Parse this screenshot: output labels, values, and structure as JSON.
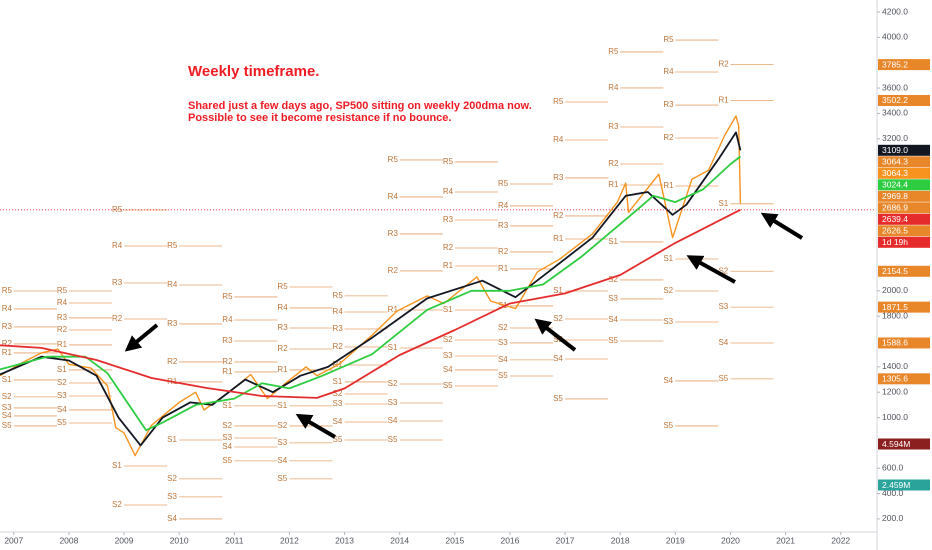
{
  "chart_data": {
    "type": "line",
    "annotations": [
      "Weekly timeframe.",
      "Shared just a few days ago, SP500 sitting on weekly 200dma now.",
      "Possible to see it become resistance if no bounce."
    ],
    "xlim": [
      2006.75,
      2022.64
    ],
    "xticks": [
      2007,
      2008,
      2009,
      2010,
      2011,
      2012,
      2013,
      2014,
      2015,
      2016,
      2017,
      2018,
      2019,
      2020,
      2021,
      2022
    ],
    "ylim": [
      97,
      4295
    ],
    "yticks": [
      {
        "value": 4200,
        "label": "4200.0"
      },
      {
        "value": 4000,
        "label": "4000.0"
      },
      {
        "value": 3600,
        "label": "3600.0"
      },
      {
        "value": 3400,
        "label": "3400.0"
      },
      {
        "value": 3200,
        "label": "3200.0"
      },
      {
        "value": 2000,
        "label": "2000.0"
      },
      {
        "value": 1800,
        "label": "1800.0"
      },
      {
        "value": 1400,
        "label": "1400.0"
      },
      {
        "value": 1200,
        "label": "1200.0"
      },
      {
        "value": 1000,
        "label": "1000.0"
      },
      {
        "value": 600,
        "label": "600.0"
      },
      {
        "value": 400,
        "label": "400.0"
      },
      {
        "value": 200,
        "label": "200.0"
      }
    ],
    "series": [
      {
        "color": "#f7931e",
        "x": [
          2006.75,
          2007.1,
          2007.5,
          2007.8,
          2008.0,
          2008.4,
          2008.7,
          2008.85,
          2009.0,
          2009.2,
          2009.5,
          2010.0,
          2010.3,
          2010.45,
          2010.9,
          2011.3,
          2011.6,
          2011.9,
          2012.3,
          2012.5,
          2012.9,
          2013.5,
          2013.95,
          2014.5,
          2014.8,
          2015.4,
          2015.65,
          2016.1,
          2016.5,
          2016.9,
          2017.5,
          2017.95,
          2018.1,
          2018.15,
          2018.7,
          2018.95,
          2019.3,
          2019.6,
          2019.9,
          2020.1,
          2020.15,
          2020.18
        ],
        "values": [
          1330,
          1420,
          1510,
          1540,
          1420,
          1390,
          1250,
          920,
          880,
          700,
          940,
          1120,
          1200,
          1060,
          1200,
          1340,
          1150,
          1260,
          1400,
          1330,
          1420,
          1650,
          1840,
          1960,
          1900,
          2110,
          1920,
          1860,
          2150,
          2250,
          2450,
          2700,
          2850,
          2620,
          2920,
          2420,
          2880,
          2950,
          3230,
          3380,
          3300,
          2690
        ]
      },
      {
        "color": "#131722",
        "x": [
          2006.75,
          2007.5,
          2008.0,
          2008.5,
          2008.9,
          2009.3,
          2009.7,
          2010.2,
          2010.6,
          2011.2,
          2011.7,
          2012.2,
          2012.7,
          2013.5,
          2014.5,
          2015.5,
          2016.1,
          2016.7,
          2017.5,
          2018.1,
          2018.5,
          2018.95,
          2019.2,
          2019.8,
          2020.1,
          2020.18
        ],
        "values": [
          1340,
          1480,
          1450,
          1330,
          1000,
          780,
          1000,
          1120,
          1100,
          1300,
          1200,
          1330,
          1400,
          1630,
          1940,
          2080,
          1950,
          2150,
          2420,
          2750,
          2780,
          2600,
          2680,
          3050,
          3250,
          3109
        ]
      },
      {
        "color": "#2ecc40",
        "x": [
          2006.75,
          2007.6,
          2008.3,
          2008.7,
          2009.4,
          2009.7,
          2010.3,
          2011.0,
          2011.5,
          2012.0,
          2012.6,
          2013.5,
          2014.5,
          2015.3,
          2016.0,
          2016.6,
          2017.3,
          2018.2,
          2018.6,
          2019.0,
          2019.5,
          2020.0,
          2020.18
        ],
        "values": [
          1380,
          1480,
          1480,
          1350,
          900,
          960,
          1100,
          1150,
          1270,
          1230,
          1330,
          1500,
          1850,
          2000,
          2000,
          2050,
          2270,
          2600,
          2750,
          2700,
          2800,
          3000,
          3060
        ]
      },
      {
        "color": "#e52b2b",
        "x": [
          2006.75,
          2007.5,
          2008.5,
          2009.5,
          2010.5,
          2011.5,
          2012.5,
          2013.0,
          2014.0,
          2015.0,
          2016.0,
          2017.0,
          2018.0,
          2019.0,
          2020.0,
          2020.18
        ],
        "values": [
          1570,
          1550,
          1454,
          1312,
          1233,
          1170,
          1155,
          1230,
          1494,
          1691,
          1900,
          1980,
          2125,
          2378,
          2600,
          2639.4
        ]
      }
    ],
    "pivots": [
      {
        "year": 2007,
        "labels": [
          "R5",
          "R4",
          "R3",
          "R2",
          "R1",
          "S1",
          "S2",
          "S3",
          "S4",
          "S5"
        ],
        "values": [
          1999,
          1857,
          1715,
          1581,
          1510,
          1297,
          1163,
          1076,
          1013,
          934
        ]
      },
      {
        "year": 2008,
        "labels": [
          "R5",
          "R4",
          "R3",
          "R2",
          "R1",
          "S1",
          "S2",
          "S3",
          "S4",
          "S5"
        ],
        "values": [
          1999,
          1904,
          1786,
          1691,
          1573,
          1376,
          1273,
          1170,
          1060,
          957
        ]
      },
      {
        "year": 2009,
        "labels": [
          "R5",
          "R4",
          "R3",
          "R2",
          "S1",
          "S2"
        ],
        "values": [
          2638,
          2354,
          2062,
          1778,
          618,
          310
        ]
      },
      {
        "year": 2010,
        "labels": [
          "R5",
          "R4",
          "R3",
          "R2",
          "R1",
          "S1",
          "S2",
          "S3",
          "S4"
        ],
        "values": [
          2354,
          2046,
          1739,
          1439,
          1281,
          823,
          516,
          374,
          200
        ]
      },
      {
        "year": 2011,
        "labels": [
          "R5",
          "R4",
          "R3",
          "R2",
          "R1",
          "S1",
          "S2",
          "S3",
          "S4",
          "S5"
        ],
        "values": [
          1952,
          1770,
          1604,
          1439,
          1360,
          1092,
          934,
          839,
          768,
          658
        ]
      },
      {
        "year": 2012,
        "labels": [
          "R5",
          "R4",
          "R3",
          "R2",
          "R1",
          "S1",
          "S2",
          "S3",
          "S4",
          "S5"
        ],
        "values": [
          2030,
          1865,
          1707,
          1541,
          1376,
          1092,
          934,
          800,
          658,
          516
        ]
      },
      {
        "year": 2013,
        "labels": [
          "R5",
          "R4",
          "R3",
          "R2",
          "R1",
          "S1",
          "S2",
          "S3",
          "S4",
          "S5"
        ],
        "values": [
          1960,
          1833,
          1699,
          1557,
          1415,
          1281,
          1186,
          1107,
          965,
          823
        ]
      },
      {
        "year": 2014,
        "labels": [
          "R5",
          "R4",
          "R3",
          "R2",
          "R1",
          "S1",
          "S2",
          "S3",
          "S4",
          "S5"
        ],
        "values": [
          3033,
          2741,
          2449,
          2157,
          1849,
          1549,
          1265,
          1115,
          973,
          823
        ]
      },
      {
        "year": 2015,
        "labels": [
          "R5",
          "R4",
          "R3",
          "R2",
          "R1",
          "S1",
          "S2",
          "S3",
          "S4",
          "S5"
        ],
        "values": [
          3017,
          2780,
          2559,
          2338,
          2196,
          1849,
          1612,
          1486,
          1376,
          1249
        ]
      },
      {
        "year": 2016,
        "labels": [
          "R5",
          "R4",
          "R3",
          "R2",
          "R1",
          "S1",
          "S2",
          "S3",
          "S4",
          "S5"
        ],
        "values": [
          2843,
          2670,
          2512,
          2307,
          2173,
          1881,
          1707,
          1589,
          1455,
          1328
        ]
      },
      {
        "year": 2017,
        "labels": [
          "R5",
          "R4",
          "R3",
          "R2",
          "R1",
          "S1",
          "S2",
          "S3",
          "S4",
          "S5"
        ],
        "values": [
          3490,
          3190,
          2891,
          2591,
          2409,
          1999,
          1778,
          1612,
          1462,
          1147
        ]
      },
      {
        "year": 2018,
        "labels": [
          "R5",
          "R4",
          "R3",
          "R2",
          "R1",
          "S1",
          "S2",
          "S3",
          "S4",
          "S5"
        ],
        "values": [
          3885,
          3601,
          3293,
          3001,
          2835,
          2386,
          2086,
          1936,
          1770,
          1604
        ]
      },
      {
        "year": 2019,
        "labels": [
          "R5",
          "R4",
          "R3",
          "R2",
          "R1",
          "S1",
          "S2",
          "S3",
          "S4",
          "S5"
        ],
        "values": [
          3979,
          3727,
          3466,
          3206,
          2827,
          2251,
          1999,
          1754,
          1289,
          934
        ]
      },
      {
        "year": 2020,
        "labels": [
          "R2",
          "R1",
          "S1",
          "S2",
          "S3",
          "S4",
          "S5"
        ],
        "values": [
          3785.2,
          3502.2,
          2686.9,
          2154.5,
          1871.5,
          1588.6,
          1305.6
        ]
      }
    ],
    "price_tags": [
      {
        "value": 3785.2,
        "color": "#e8862a"
      },
      {
        "value": 3502.2,
        "color": "#e8862a"
      },
      {
        "value": 3109,
        "label": "3109.0",
        "color": "#131722"
      },
      {
        "value": 3064.3,
        "color": "#e8862a"
      },
      {
        "value": 3064.3,
        "color": "#f7931e"
      },
      {
        "value": 3024.4,
        "color": "#2ecc40"
      },
      {
        "value": 2969.8,
        "color": "#e8862a"
      },
      {
        "value": 2686.9,
        "color": "#e8862a"
      },
      {
        "value": 2639.4,
        "color": "#e52b2b"
      },
      {
        "value": 2626.5,
        "color": "#e8862a"
      },
      {
        "label": "1d 19h",
        "color": "#e52b2b"
      },
      {
        "value": 2154.5,
        "color": "#e8862a"
      },
      {
        "value": 1871.5,
        "color": "#e8862a"
      },
      {
        "value": 1588.6,
        "color": "#e8862a"
      },
      {
        "value": 1305.6,
        "color": "#e8862a"
      }
    ],
    "volume_tags": [
      {
        "label": "4.594M",
        "color": "#8b1e1e"
      },
      {
        "label": "2.459M",
        "color": "#2aa39a"
      }
    ]
  }
}
